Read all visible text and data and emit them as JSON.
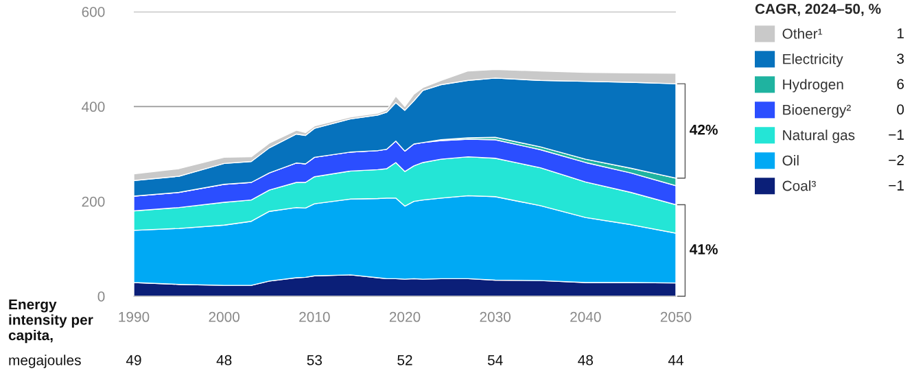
{
  "chart_data": {
    "type": "area",
    "stacked": true,
    "x": [
      1990,
      1995,
      2000,
      2003,
      2005,
      2008,
      2009,
      2010,
      2014,
      2017,
      2018,
      2019,
      2020,
      2021,
      2022,
      2024,
      2027,
      2030,
      2035,
      2040,
      2045,
      2050
    ],
    "series": [
      {
        "name": "Coal³",
        "color": "#0b1f78",
        "values": [
          29,
          25,
          23,
          23,
          32,
          39,
          40,
          43,
          45,
          39,
          37,
          37,
          36,
          37,
          36,
          37,
          37,
          34,
          33,
          29,
          29,
          28
        ]
      },
      {
        "name": "Oil",
        "color": "#00a9f4",
        "values": [
          110,
          118,
          127,
          135,
          147,
          148,
          146,
          152,
          160,
          167,
          170,
          170,
          154,
          163,
          167,
          170,
          175,
          176,
          158,
          137,
          122,
          105
        ]
      },
      {
        "name": "Natural gas",
        "color": "#24e5d6",
        "values": [
          41,
          44,
          48,
          45,
          45,
          53,
          54,
          57,
          59,
          61,
          62,
          75,
          73,
          75,
          79,
          82,
          82,
          81,
          80,
          75,
          68,
          60
        ]
      },
      {
        "name": "Bioenergy²",
        "color": "#2b4eff",
        "values": [
          31,
          32,
          38,
          37,
          36,
          41,
          39,
          41,
          40,
          40,
          41,
          45,
          43,
          46,
          42,
          39,
          37,
          39,
          38,
          41,
          41,
          40
        ]
      },
      {
        "name": "Hydrogen",
        "color": "#1fb3a0",
        "values": [
          0,
          0,
          0,
          0,
          0,
          0,
          0,
          0,
          0,
          0,
          0,
          0,
          0,
          0,
          0,
          2,
          3,
          5,
          6,
          7,
          10,
          16
        ]
      },
      {
        "name": "Electricity",
        "color": "#0672bd",
        "values": [
          33,
          34,
          44,
          44,
          53,
          61,
          60,
          61,
          70,
          75,
          78,
          81,
          86,
          91,
          110,
          116,
          121,
          125,
          140,
          164,
          181,
          199
        ]
      },
      {
        "name": "Other¹",
        "color": "#c9c9c9",
        "values": [
          14,
          16,
          13,
          10,
          10,
          8,
          6,
          5,
          4,
          4,
          5,
          14,
          8,
          14,
          6,
          9,
          20,
          18,
          20,
          19,
          20,
          22
        ]
      }
    ],
    "xlim": [
      1990,
      2050
    ],
    "xticks": [
      1990,
      2000,
      2010,
      2020,
      2030,
      2040,
      2050
    ],
    "ylim": [
      0,
      600
    ],
    "yticks": [
      0,
      200,
      400,
      600
    ],
    "grid": "y",
    "legend": "right",
    "legend_title": "CAGR, 2024–50, %",
    "annotations": [
      "Energy intensity per capita,",
      "megajoules",
      "49",
      "48",
      "53",
      "52",
      "54",
      "48",
      "44",
      "1",
      "3",
      "6",
      "0",
      "−1",
      "−2",
      "−1",
      "42%",
      "41%"
    ]
  }
}
